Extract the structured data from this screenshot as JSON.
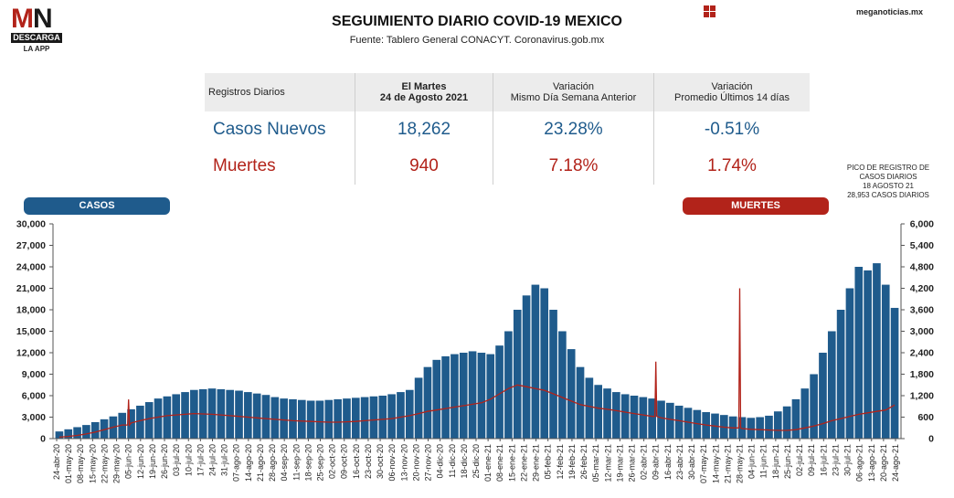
{
  "header": {
    "logo_mn": "MN",
    "logo_descarga": "DESCARGA",
    "logo_app": "LA APP",
    "title": "SEGUIMIENTO DIARIO COVID-19 MEXICO",
    "subtitle": "Fuente: Tablero General CONACYT. Coronavirus.gob.mx",
    "site": "meganoticias.mx",
    "grid_icon": "grid-icon"
  },
  "stats_table": {
    "headers": [
      "Registros Diarios",
      "El Martes 24 de Agosto 2021",
      "Variación Mismo Día Semana Anterior",
      "Variación Promedio Últimos 14 días"
    ],
    "header_lines": [
      [
        "Registros Diarios"
      ],
      [
        "El Martes",
        "24 de Agosto 2021"
      ],
      [
        "Variación",
        "Mismo Día Semana Anterior"
      ],
      [
        "Variación",
        "Promedio Últimos 14 días"
      ]
    ],
    "rows": [
      {
        "label": "Casos Nuevos",
        "value": "18,262",
        "var_week": "23.28%",
        "var_14d": "-0.51%"
      },
      {
        "label": "Muertes",
        "value": "940",
        "var_week": "7.18%",
        "var_14d": "1.74%"
      }
    ]
  },
  "labels": {
    "casos": "CASOS",
    "muertes": "MUERTES",
    "peak_note": [
      "PICO DE REGISTRO DE",
      "CASOS DIARIOS",
      "18 AGOSTO 21",
      "28,953 CASOS DIARIOS"
    ]
  },
  "colors": {
    "casos": "#1f5b8c",
    "muertes": "#b2231a",
    "header_bg": "#ececec"
  },
  "chart_data": {
    "type": "bar",
    "title": "",
    "series": [
      {
        "name": "CASOS",
        "axis": "left",
        "mark": "bar",
        "values": [
          1000,
          1300,
          1600,
          1900,
          2300,
          2700,
          3100,
          3600,
          4100,
          4600,
          5100,
          5600,
          5900,
          6200,
          6500,
          6800,
          6900,
          7000,
          6900,
          6800,
          6700,
          6500,
          6300,
          6100,
          5800,
          5600,
          5500,
          5400,
          5300,
          5300,
          5400,
          5500,
          5600,
          5700,
          5800,
          5900,
          6000,
          6200,
          6500,
          6800,
          8500,
          10000,
          11000,
          11500,
          11800,
          12000,
          12200,
          12000,
          11800,
          13000,
          15000,
          18000,
          20000,
          21500,
          21000,
          18000,
          15000,
          12500,
          10000,
          8500,
          7500,
          7000,
          6500,
          6200,
          6000,
          5800,
          5600,
          5300,
          5000,
          4600,
          4300,
          4000,
          3700,
          3500,
          3300,
          3100,
          3000,
          2900,
          3000,
          3200,
          3800,
          4500,
          5500,
          7000,
          9000,
          12000,
          15000,
          18000,
          21000,
          24000,
          23500,
          24500,
          21500,
          18262
        ]
      },
      {
        "name": "MUERTES",
        "axis": "right",
        "mark": "line",
        "values": [
          40,
          60,
          90,
          130,
          180,
          250,
          320,
          380,
          440,
          500,
          560,
          600,
          640,
          660,
          680,
          700,
          690,
          680,
          660,
          640,
          620,
          600,
          580,
          560,
          540,
          520,
          500,
          490,
          480,
          470,
          460,
          460,
          470,
          480,
          500,
          520,
          540,
          560,
          600,
          640,
          700,
          760,
          800,
          840,
          880,
          920,
          960,
          1000,
          1100,
          1250,
          1400,
          1500,
          1450,
          1400,
          1350,
          1250,
          1150,
          1050,
          950,
          900,
          850,
          820,
          780,
          740,
          700,
          660,
          620,
          580,
          540,
          500,
          460,
          420,
          380,
          350,
          320,
          300,
          280,
          260,
          250,
          240,
          230,
          230,
          250,
          300,
          350,
          420,
          500,
          560,
          620,
          680,
          720,
          760,
          800,
          940
        ]
      }
    ],
    "spikes": [
      {
        "series": "MUERTES",
        "date": "05-jun-20",
        "value": 1092
      },
      {
        "series": "MUERTES",
        "date": "09-abr-21",
        "value": 2150
      },
      {
        "series": "MUERTES",
        "date": "28-may-21",
        "value": 4200
      },
      {
        "series": "CASOS",
        "date": "18-ago-21",
        "value": 28953
      }
    ],
    "x_tick_labels": [
      "24-abr-20",
      "01-may-20",
      "08-may-20",
      "15-may-20",
      "22-may-20",
      "29-may-20",
      "05-jun-20",
      "12-jun-20",
      "19-jun-20",
      "26-jun-20",
      "03-jul-20",
      "10-jul-20",
      "17-jul-20",
      "24-jul-20",
      "31-jul-20",
      "07-ago-20",
      "14-ago-20",
      "21-ago-20",
      "28-ago-20",
      "04-sep-20",
      "11-sep-20",
      "18-sep-20",
      "25-sep-20",
      "02-oct-20",
      "09-oct-20",
      "16-oct-20",
      "23-oct-20",
      "30-oct-20",
      "06-nov-20",
      "13-nov-20",
      "20-nov-20",
      "27-nov-20",
      "04-dic-20",
      "11-dic-20",
      "18-dic-20",
      "25-dic-20",
      "01-ene-21",
      "08-ene-21",
      "15-ene-21",
      "22-ene-21",
      "29-ene-21",
      "05-feb-21",
      "12-feb-21",
      "19-feb-21",
      "26-feb-21",
      "05-mar-21",
      "12-mar-21",
      "19-mar-21",
      "26-mar-21",
      "02-abr-21",
      "09-abr-21",
      "16-abr-21",
      "23-abr-21",
      "30-abr-21",
      "07-may-21",
      "14-may-21",
      "21-may-21",
      "28-may-21",
      "04-jun-21",
      "11-jun-21",
      "18-jun-21",
      "25-jun-21",
      "02-jul-21",
      "09-jul-21",
      "16-jul-21",
      "23-jul-21",
      "30-jul-21",
      "06-ago-21",
      "13-ago-21",
      "20-ago-21",
      "24-ago-21"
    ],
    "y_left": {
      "ticks": [
        "0",
        "3,000",
        "6,000",
        "9,000",
        "12,000",
        "15,000",
        "18,000",
        "21,000",
        "24,000",
        "27,000",
        "30,000"
      ],
      "range": [
        0,
        30000
      ]
    },
    "y_right": {
      "ticks": [
        "0",
        "600",
        "1,200",
        "1,800",
        "2,400",
        "3,000",
        "3,600",
        "4,200",
        "4,800",
        "5,400",
        "6,000"
      ],
      "range": [
        0,
        6000
      ]
    },
    "grid": false
  }
}
